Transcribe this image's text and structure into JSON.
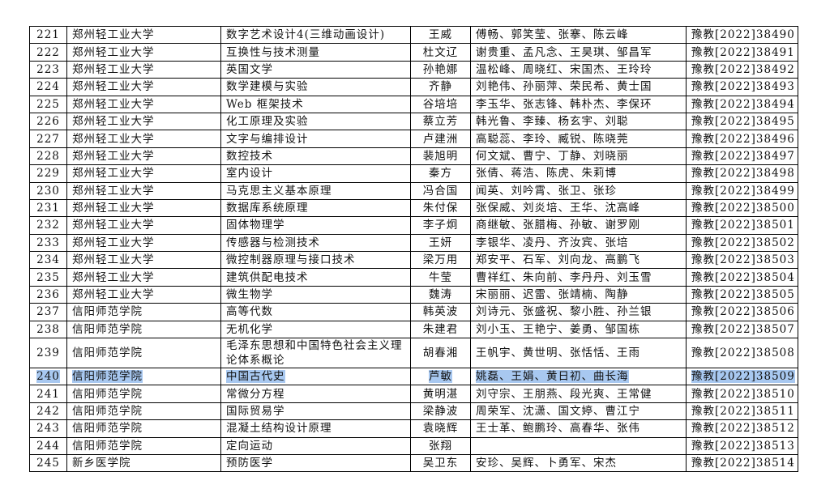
{
  "table": {
    "rows": [
      [
        "221",
        "郑州轻工业大学",
        "数字艺术设计4(三维动画设计)",
        "王威",
        "傅畅、郭笑莹、张搴、陈云峰",
        "豫教[2022]38490"
      ],
      [
        "222",
        "郑州轻工业大学",
        "互换性与技术测量",
        "杜文辽",
        "谢贵重、孟凡念、王昊琪、邹昌军",
        "豫教[2022]38491"
      ],
      [
        "223",
        "郑州轻工业大学",
        "英国文学",
        "孙艳娜",
        "温松峰、周晓红、宋国杰、王玲玲",
        "豫教[2022]38492"
      ],
      [
        "224",
        "郑州轻工业大学",
        "数学建模与实验",
        "齐静",
        "刘艳伟、孙丽萍、荣民希、黄士国",
        "豫教[2022]38493"
      ],
      [
        "225",
        "郑州轻工业大学",
        "Web 框架技术",
        "谷培培",
        "李玉华、张志锋、韩朴杰、李保环",
        "豫教[2022]38494"
      ],
      [
        "226",
        "郑州轻工业大学",
        "化工原理及实验",
        "蔡立芳",
        "韩光鲁、李臻、杨玄宇、刘聪",
        "豫教[2022]38495"
      ],
      [
        "227",
        "郑州轻工业大学",
        "文字与编排设计",
        "卢建洲",
        "高聪蕊、李玲、臧锐、陈晓莞",
        "豫教[2022]38496"
      ],
      [
        "228",
        "郑州轻工业大学",
        "数控技术",
        "裴旭明",
        "何文斌、曹宁、丁静、刘晓丽",
        "豫教[2022]38497"
      ],
      [
        "229",
        "郑州轻工业大学",
        "室内设计",
        "秦方",
        "张倩、蒋浩、陈虎、朱莉博",
        "豫教[2022]38498"
      ],
      [
        "230",
        "郑州轻工业大学",
        "马克思主义基本原理",
        "冯合国",
        "闻英、刘吟霄、张卫、张珍",
        "豫教[2022]38499"
      ],
      [
        "231",
        "郑州轻工业大学",
        "数据库系统原理",
        "朱付保",
        "张保威、刘炎培、王华、沈高峰",
        "豫教[2022]38500"
      ],
      [
        "232",
        "郑州轻工业大学",
        "固体物理学",
        "李子炯",
        "商继敏、张腊梅、孙敏、谢罗刚",
        "豫教[2022]38501"
      ],
      [
        "233",
        "郑州轻工业大学",
        "传感器与检测技术",
        "王妍",
        "李银华、凌丹、齐汝宾、张培",
        "豫教[2022]38502"
      ],
      [
        "234",
        "郑州轻工业大学",
        "微控制器原理与接口技术",
        "梁万用",
        "郑安平、石军、刘向龙、高鹏飞",
        "豫教[2022]38503"
      ],
      [
        "235",
        "郑州轻工业大学",
        "建筑供配电技术",
        "牛莹",
        "曹祥红、朱向前、李丹丹、刘玉雪",
        "豫教[2022]38504"
      ],
      [
        "236",
        "郑州轻工业大学",
        "微生物学",
        "魏涛",
        "宋丽丽、迟雷、张靖楠、陶静",
        "豫教[2022]38505"
      ],
      [
        "237",
        "信阳师范学院",
        "高等代数",
        "韩英波",
        "刘诗元、张盛祝、黎小胜、孙兰银",
        "豫教[2022]38506"
      ],
      [
        "238",
        "信阳师范学院",
        "无机化学",
        "朱建君",
        "刘小玉、王艳宁、姜勇、邹国栋",
        "豫教[2022]38507"
      ],
      [
        "239",
        "信阳师范学院",
        "毛泽东思想和中国特色社会主义理论体系概论",
        "胡春湘",
        "王帆宇、黄世明、张恬恬、王雨",
        "豫教[2022]38508"
      ],
      [
        "240",
        "信阳师范学院",
        "中国古代史",
        "芦敏",
        "姚磊、王娟、黄日初、曲长海",
        "豫教[2022]38509"
      ],
      [
        "241",
        "信阳师范学院",
        "常微分方程",
        "黄明湛",
        "刘守宗、王朋燕、段光爽、王常健",
        "豫教[2022]38510"
      ],
      [
        "242",
        "信阳师范学院",
        "国际贸易学",
        "梁静波",
        "周荣军、沈潇、国文婷、曹江宁",
        "豫教[2022]38511"
      ],
      [
        "243",
        "信阳师范学院",
        "混凝土结构设计原理",
        "袁晓辉",
        "王士革、鲍鹏玲、高春华、张伟",
        "豫教[2022]38512"
      ],
      [
        "244",
        "信阳师范学院",
        "定向运动",
        "张翔",
        null,
        "豫教[2022]38513"
      ],
      [
        "245",
        "新乡医学院",
        "预防医学",
        "吴卫东",
        "安珍、吴辉、卜勇军、宋杰",
        "豫教[2022]38514"
      ]
    ]
  }
}
